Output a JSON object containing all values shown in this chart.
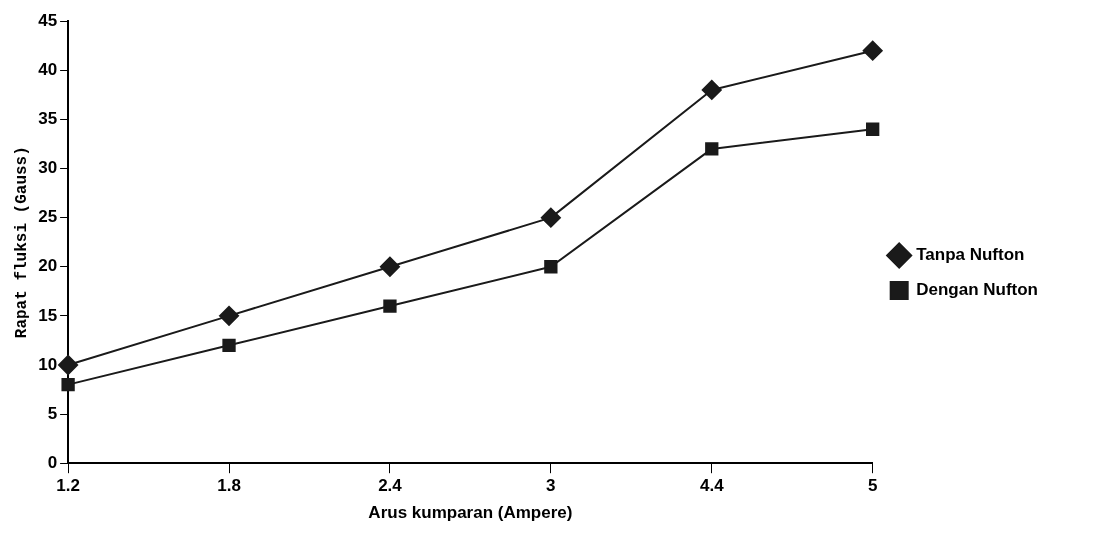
{
  "chart_data": {
    "type": "line",
    "xlabel": "Arus kumparan (Ampere)",
    "ylabel": "Rapat fluksi (Gauss)",
    "categories": [
      "1.2",
      "1.8",
      "2.4",
      "3",
      "4.4",
      "5"
    ],
    "series": [
      {
        "name": "Tanpa Nufton",
        "color": "#1a1a1a",
        "marker": "diamond",
        "values": [
          10,
          15,
          20,
          25,
          38,
          42
        ]
      },
      {
        "name": "Dengan Nufton",
        "color": "#1a1a1a",
        "marker": "square",
        "values": [
          8,
          12,
          16,
          20,
          32,
          34
        ]
      }
    ],
    "ylim": [
      0,
      45
    ],
    "yticks": [
      0,
      5,
      10,
      15,
      20,
      25,
      30,
      35,
      40,
      45
    ],
    "grid": false,
    "legend": "right",
    "line_style": "solid"
  }
}
